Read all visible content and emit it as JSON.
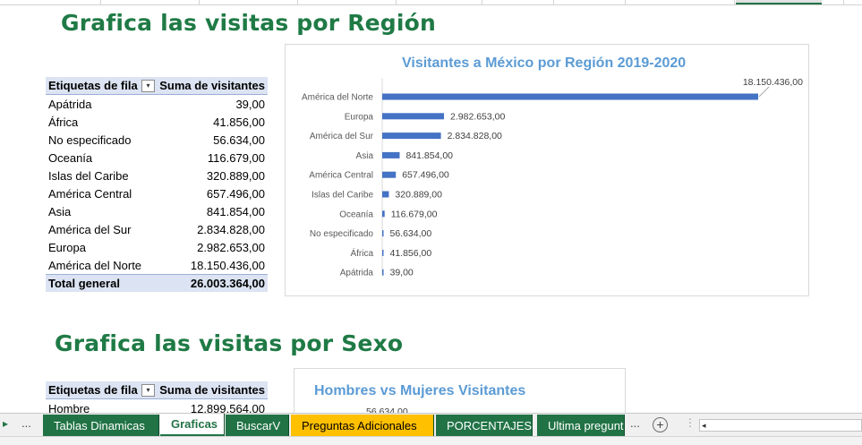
{
  "section1": {
    "title": "Grafica las visitas por Región"
  },
  "section2": {
    "title": "Grafica las visitas por Sexo"
  },
  "pivot_region": {
    "header_label": "Etiquetas de fila",
    "header_value": "Suma de visitantes",
    "rows": [
      {
        "label": "Apátrida",
        "value": "39,00"
      },
      {
        "label": "África",
        "value": "41.856,00"
      },
      {
        "label": "No especificado",
        "value": "56.634,00"
      },
      {
        "label": "Oceanía",
        "value": "116.679,00"
      },
      {
        "label": "Islas del Caribe",
        "value": "320.889,00"
      },
      {
        "label": "América Central",
        "value": "657.496,00"
      },
      {
        "label": "Asia",
        "value": "841.854,00"
      },
      {
        "label": "América del Sur",
        "value": "2.834.828,00"
      },
      {
        "label": "Europa",
        "value": "2.982.653,00"
      },
      {
        "label": "América del Norte",
        "value": "18.150.436,00"
      }
    ],
    "total_label": "Total general",
    "total_value": "26.003.364,00"
  },
  "pivot_sex": {
    "header_label": "Etiquetas de fila",
    "header_value": "Suma de visitantes",
    "rows": [
      {
        "label": "Hombre",
        "value": "12.899.564,00"
      }
    ]
  },
  "chart_data": [
    {
      "type": "bar",
      "orientation": "horizontal",
      "title": "Visitantes a México por Región 2019-2020",
      "categories": [
        "América del Norte",
        "Europa",
        "América del Sur",
        "Asia",
        "América Central",
        "Islas del Caribe",
        "Oceanía",
        "No especificado",
        "África",
        "Apátrida"
      ],
      "values": [
        18150436,
        2982653,
        2834828,
        841854,
        657496,
        320889,
        116679,
        56634,
        41856,
        39
      ],
      "value_labels": [
        "18.150.436,00",
        "2.982.653,00",
        "2.834.828,00",
        "841.854,00",
        "657.496,00",
        "320.889,00",
        "116.679,00",
        "56.634,00",
        "41.856,00",
        "39,00"
      ],
      "xlim": [
        0,
        18150436
      ],
      "grid": false,
      "color": "#4472c4"
    },
    {
      "type": "pie",
      "title": "Hombres vs Mujeres Visitantes",
      "partial_label": "56.634,00"
    }
  ],
  "tabs": {
    "nav_prev": "▸",
    "nav_dots": "...",
    "items": [
      {
        "label": "Tablas Dinamicas",
        "style": "green"
      },
      {
        "label": "Graficas",
        "style": "active"
      },
      {
        "label": "BuscarV",
        "style": "green"
      },
      {
        "label": "Preguntas Adicionales",
        "style": "yellow"
      },
      {
        "label": "PORCENTAJES",
        "style": "green"
      },
      {
        "label": "Ultima pregunta",
        "style": "green"
      }
    ],
    "more_dots": "...",
    "add_sheet": "+",
    "scroll_left": "◂"
  },
  "colors": {
    "title_green": "#1f7a45",
    "chart_title_blue": "#5b9bd5",
    "bar_blue": "#4472c4",
    "tab_green": "#217346",
    "tab_yellow": "#ffc000",
    "pivot_header": "#dce3f2"
  }
}
